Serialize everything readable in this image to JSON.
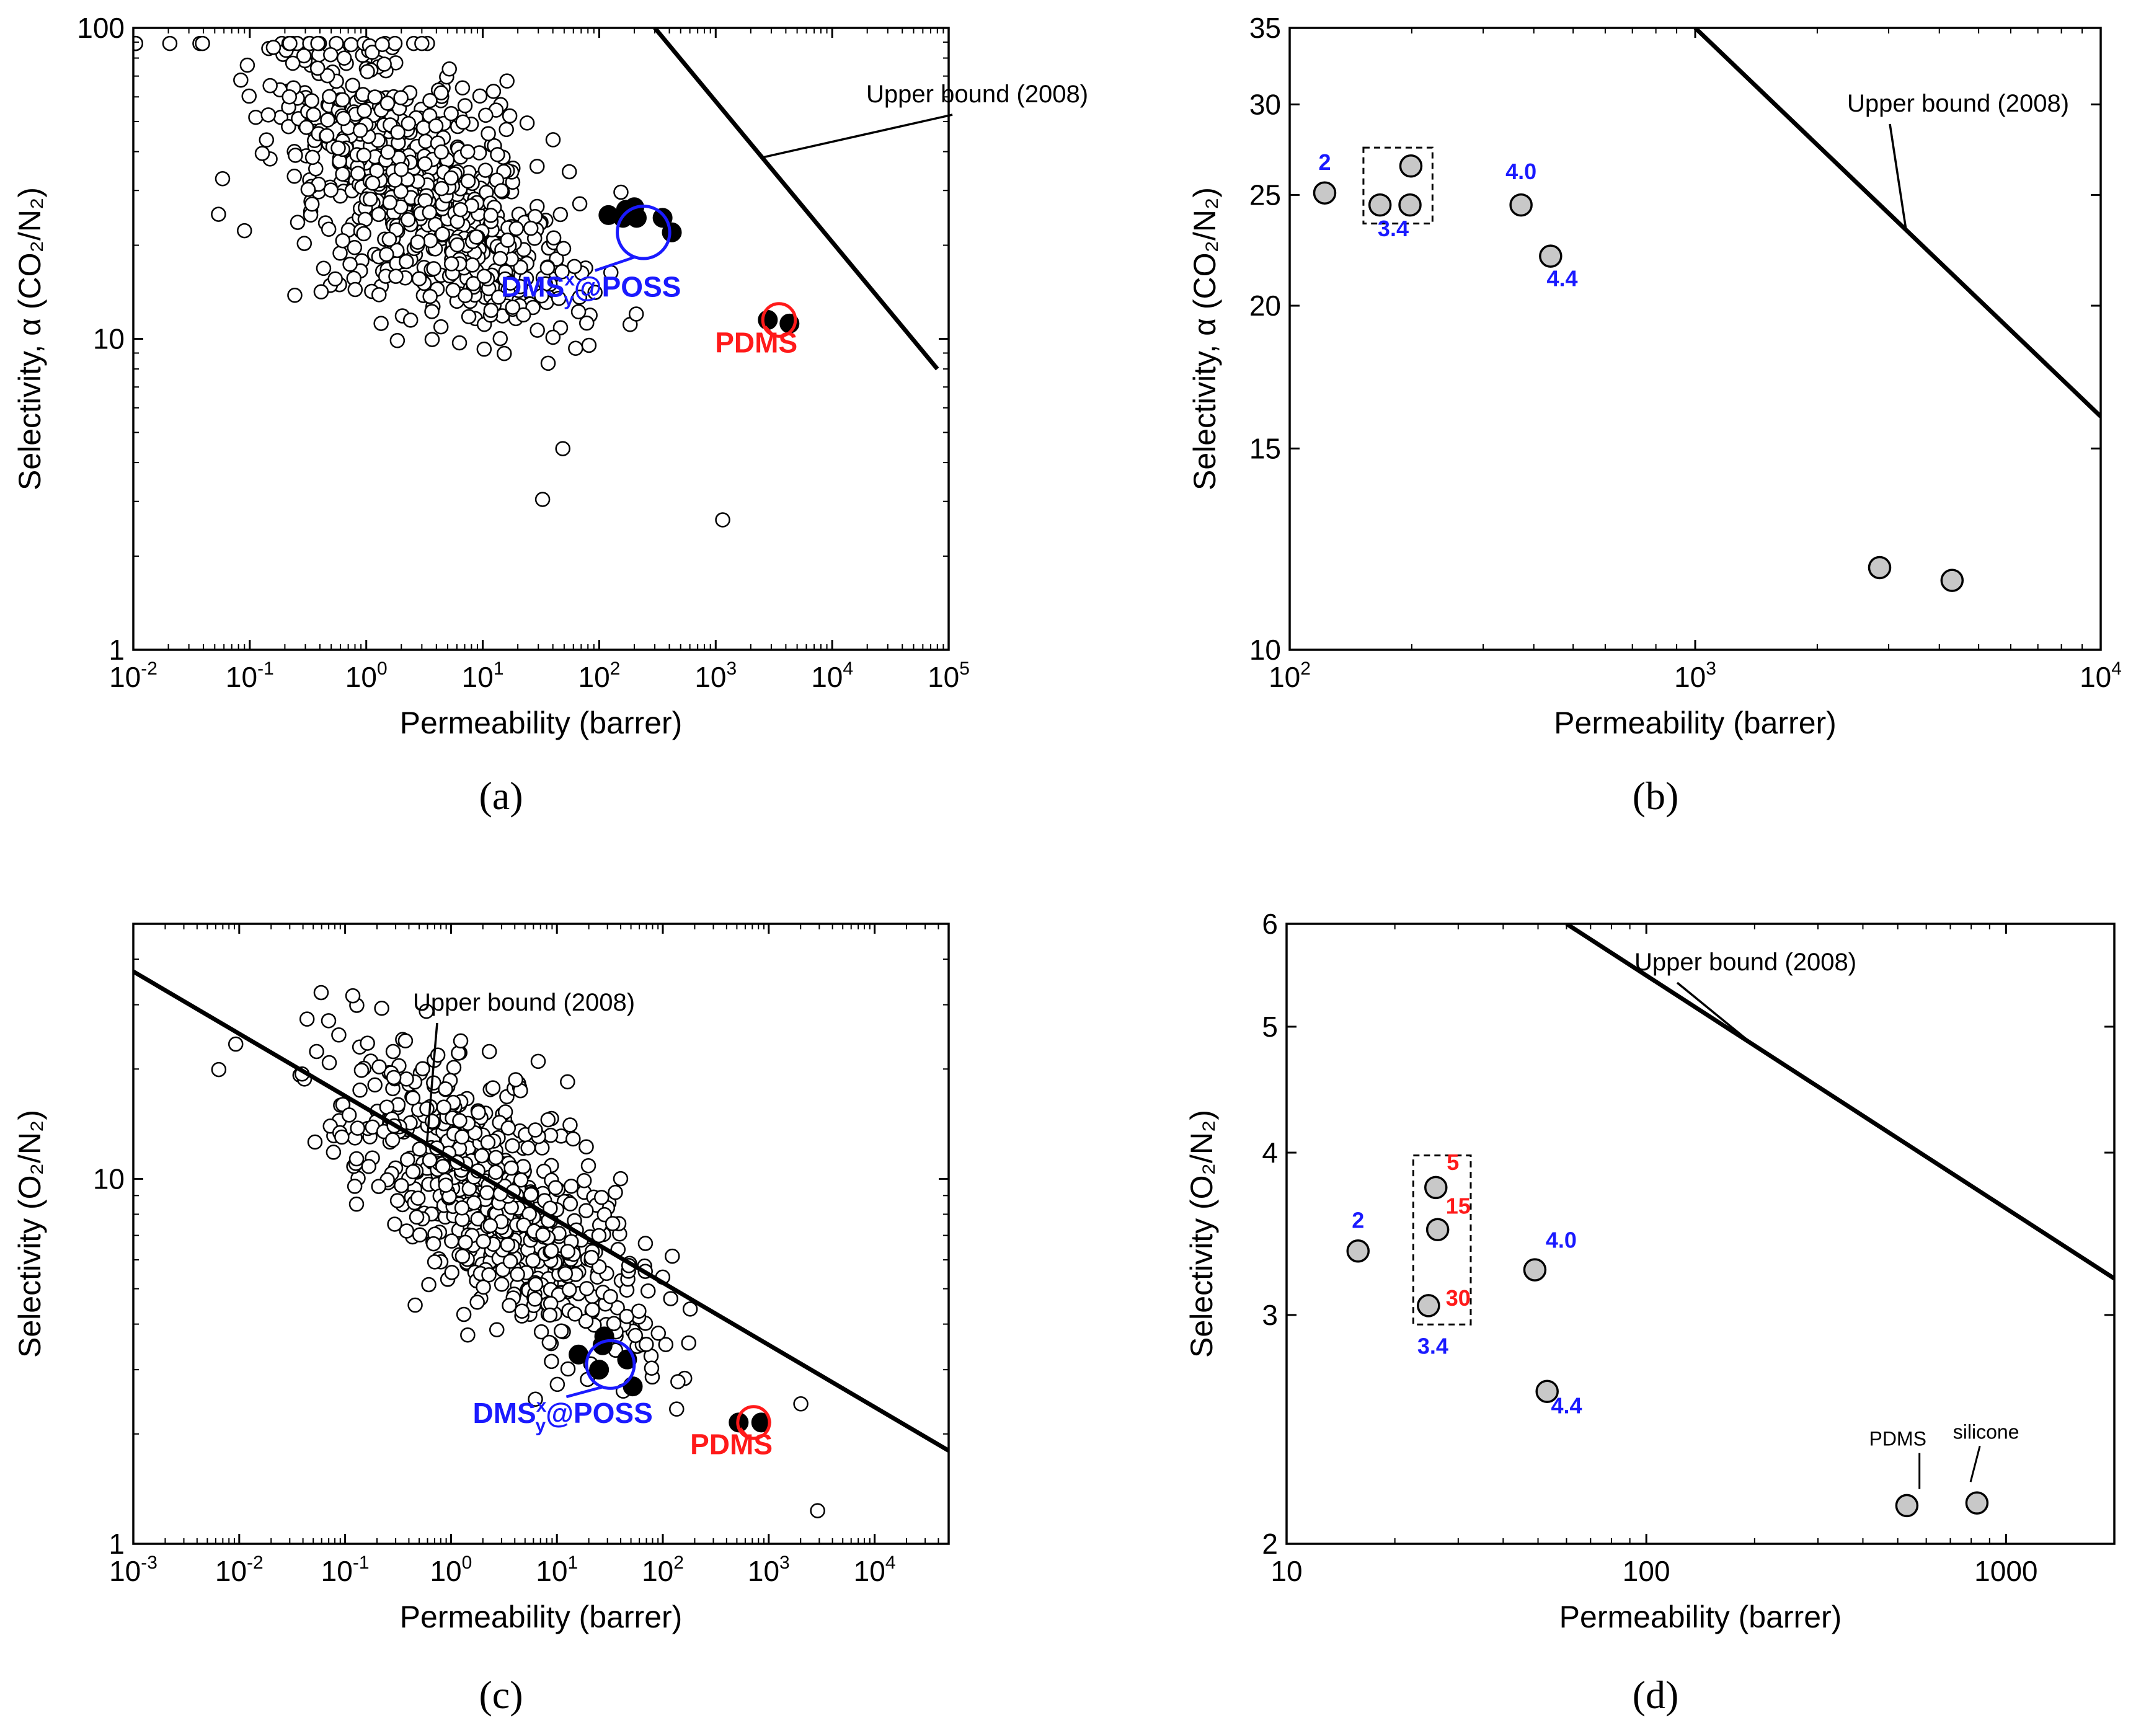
{
  "colors": {
    "blue": "#1a1aff",
    "red": "#ff1a1a",
    "black": "#000000",
    "grey_fill": "#c8c8c8"
  },
  "chart_data": [
    {
      "id": "a",
      "type": "scatter",
      "caption": "(a)",
      "title": "",
      "xlabel": "Permeability (barrer)",
      "ylabel": "Selectivity, α (CO₂/N₂)",
      "xscale": "log",
      "yscale": "log",
      "xlim": [
        0.01,
        100000
      ],
      "ylim": [
        1,
        100
      ],
      "x_ticks": [
        {
          "v": 0.01,
          "b": "10",
          "e": "-2"
        },
        {
          "v": 0.1,
          "b": "10",
          "e": "-1"
        },
        {
          "v": 1,
          "b": "10",
          "e": "0"
        },
        {
          "v": 10,
          "b": "10",
          "e": "1"
        },
        {
          "v": 100,
          "b": "10",
          "e": "2"
        },
        {
          "v": 1000,
          "b": "10",
          "e": "3"
        },
        {
          "v": 10000,
          "b": "10",
          "e": "4"
        },
        {
          "v": 100000,
          "b": "10",
          "e": "5"
        }
      ],
      "y_ticks": [
        {
          "v": 1,
          "label": "1"
        },
        {
          "v": 10,
          "label": "10"
        },
        {
          "v": 100,
          "label": "100"
        }
      ],
      "upper_bound": {
        "label": "Upper bound (2008)",
        "x": [
          300,
          80000
        ],
        "y": [
          100,
          8
        ]
      },
      "annotations": [
        {
          "text": "DMS",
          "sup": "x",
          "sub": "y",
          "suffix": "@POSS",
          "color": "blue",
          "ring_center": [
            240,
            22
          ],
          "ring_decades": 0.45
        },
        {
          "text": "PDMS",
          "color": "red",
          "ring_center": [
            3500,
            11.5
          ],
          "ring_decades": 0.28
        }
      ],
      "cloud": {
        "description": "literature membranes",
        "count": 700,
        "seed": 11,
        "ln_mu": 1.1,
        "ln_sigma": 1.6,
        "slope": -0.22,
        "intercept": 1.36,
        "spread": 0.2
      },
      "series": [
        {
          "name": "DMSxy@POSS",
          "marker": "filled-black",
          "x": [
            120,
            160,
            170,
            200,
            210,
            350,
            420
          ],
          "y": [
            25,
            24.5,
            26,
            26.5,
            24.5,
            24.5,
            22
          ]
        },
        {
          "name": "PDMS",
          "marker": "filled-black",
          "x": [
            2800,
            4300
          ],
          "y": [
            11.5,
            11.2
          ]
        }
      ]
    },
    {
      "id": "b",
      "type": "scatter",
      "caption": "(b)",
      "title": "",
      "xlabel": "Permeability (barrer)",
      "ylabel": "Selectivity, α (CO₂/N₂)",
      "xscale": "log",
      "yscale": "log",
      "xlim": [
        100,
        10000
      ],
      "ylim": [
        10,
        35
      ],
      "x_ticks": [
        {
          "v": 100,
          "b": "10",
          "e": "2"
        },
        {
          "v": 1000,
          "b": "10",
          "e": "3"
        },
        {
          "v": 10000,
          "b": "10",
          "e": "4"
        }
      ],
      "y_ticks": [
        {
          "v": 10,
          "label": "10"
        },
        {
          "v": 15,
          "label": "15"
        },
        {
          "v": 20,
          "label": "20"
        },
        {
          "v": 25,
          "label": "25"
        },
        {
          "v": 30,
          "label": "30"
        },
        {
          "v": 35,
          "label": "35"
        }
      ],
      "upper_bound": {
        "label": "Upper bound (2008)",
        "x": [
          1000,
          10000
        ],
        "y": [
          35,
          16
        ]
      },
      "series": [
        {
          "name": "points",
          "marker": "filled-grey",
          "x": [
            122,
            167,
            198,
            199,
            372,
            440,
            2850,
            4300
          ],
          "y": [
            25.1,
            24.5,
            24.5,
            26.5,
            24.5,
            22.1,
            11.8,
            11.5
          ]
        }
      ],
      "labels": [
        {
          "text": "2",
          "color": "blue",
          "x": 122,
          "y": 26.3
        },
        {
          "text": "3.4",
          "color": "blue",
          "x": 180,
          "y": 23.0
        },
        {
          "text": "4.0",
          "color": "blue",
          "x": 372,
          "y": 25.8
        },
        {
          "text": "4.4",
          "color": "blue",
          "x": 470,
          "y": 20.8
        }
      ],
      "box": {
        "x": [
          152,
          225
        ],
        "y": [
          23.6,
          27.5
        ]
      }
    },
    {
      "id": "c",
      "type": "scatter",
      "caption": "(c)",
      "title": "",
      "xlabel": "Permeability (barrer)",
      "ylabel": "Selectivity (O₂/N₂)",
      "xscale": "log",
      "yscale": "log",
      "xlim": [
        0.001,
        50000
      ],
      "ylim": [
        1,
        50
      ],
      "x_ticks": [
        {
          "v": 0.001,
          "b": "10",
          "e": "-3"
        },
        {
          "v": 0.01,
          "b": "10",
          "e": "-2"
        },
        {
          "v": 0.1,
          "b": "10",
          "e": "-1"
        },
        {
          "v": 1,
          "b": "10",
          "e": "0"
        },
        {
          "v": 10,
          "b": "10",
          "e": "1"
        },
        {
          "v": 100,
          "b": "10",
          "e": "2"
        },
        {
          "v": 1000,
          "b": "10",
          "e": "3"
        },
        {
          "v": 10000,
          "b": "10",
          "e": "4"
        }
      ],
      "y_ticks": [
        {
          "v": 1,
          "label": "1"
        },
        {
          "v": 10,
          "label": "10"
        }
      ],
      "upper_bound": {
        "label": "Upper bound (2008)",
        "x": [
          0.001,
          50000
        ],
        "y": [
          37,
          1.8
        ]
      },
      "annotations": [
        {
          "text": "DMS",
          "sup": "x",
          "sub": "y",
          "suffix": "@POSS",
          "color": "blue",
          "ring_center": [
            32,
            3.1
          ],
          "ring_decades": 0.45
        },
        {
          "text": "PDMS",
          "color": "red",
          "ring_center": [
            720,
            2.15
          ],
          "ring_decades": 0.3
        }
      ],
      "cloud": {
        "description": "literature membranes",
        "count": 650,
        "seed": 23,
        "ln_mu": 1.0,
        "ln_sigma": 1.7,
        "slope": -0.21,
        "intercept": 0.82,
        "spread": 0.16
      },
      "series": [
        {
          "name": "DMSxy@POSS",
          "marker": "filled-black",
          "x": [
            16,
            25,
            27,
            28,
            46,
            52
          ],
          "y": [
            3.3,
            3.0,
            3.5,
            3.7,
            3.2,
            2.7
          ]
        },
        {
          "name": "PDMS",
          "marker": "filled-black",
          "x": [
            520,
            850
          ],
          "y": [
            2.15,
            2.15
          ]
        }
      ]
    },
    {
      "id": "d",
      "type": "scatter",
      "caption": "(d)",
      "title": "",
      "xlabel": "Permeability (barrer)",
      "ylabel": "Selectivity (O₂/N₂)",
      "xscale": "log",
      "yscale": "log",
      "xlim": [
        10,
        2000
      ],
      "ylim": [
        2,
        6
      ],
      "x_ticks": [
        {
          "v": 10,
          "label": "10"
        },
        {
          "v": 100,
          "label": "100"
        },
        {
          "v": 1000,
          "label": "1000"
        }
      ],
      "y_ticks": [
        {
          "v": 2,
          "label": "2"
        },
        {
          "v": 3,
          "label": "3"
        },
        {
          "v": 4,
          "label": "4"
        },
        {
          "v": 5,
          "label": "5"
        },
        {
          "v": 6,
          "label": "6"
        }
      ],
      "upper_bound": {
        "label": "Upper bound (2008)",
        "x": [
          60,
          2000
        ],
        "y": [
          6,
          3.2
        ]
      },
      "series": [
        {
          "name": "points",
          "marker": "filled-grey",
          "x": [
            15.8,
            24.8,
            26,
            26.3,
            49,
            53,
            530,
            830
          ],
          "y": [
            3.36,
            3.05,
            3.76,
            3.49,
            3.25,
            2.62,
            2.14,
            2.15
          ]
        }
      ],
      "labels": [
        {
          "text": "2",
          "color": "blue",
          "x": 15.8,
          "y": 3.5
        },
        {
          "text": "5",
          "color": "red",
          "x": 29,
          "y": 3.88
        },
        {
          "text": "15",
          "color": "red",
          "x": 30,
          "y": 3.59
        },
        {
          "text": "30",
          "color": "red",
          "x": 30,
          "y": 3.05
        },
        {
          "text": "3.4",
          "color": "blue",
          "x": 25.5,
          "y": 2.8
        },
        {
          "text": "4.0",
          "color": "blue",
          "x": 58,
          "y": 3.38
        },
        {
          "text": "4.4",
          "color": "blue",
          "x": 60,
          "y": 2.52
        },
        {
          "text": "PDMS",
          "color": "black",
          "x": 500,
          "y": 2.38,
          "small": true
        },
        {
          "text": "silicone",
          "color": "black",
          "x": 880,
          "y": 2.41,
          "small": true
        }
      ],
      "box": {
        "x": [
          22.5,
          32.5
        ],
        "y": [
          2.95,
          3.98
        ]
      }
    }
  ]
}
